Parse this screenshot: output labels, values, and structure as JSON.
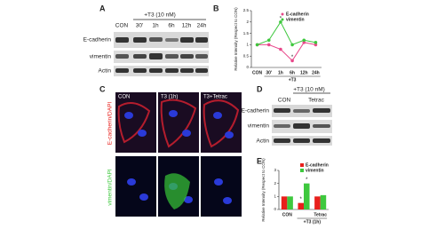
{
  "panels": {
    "a": {
      "letter": "A",
      "treatment": "+T3 (10 nM)",
      "lanes": [
        "CON",
        "30'",
        "1h",
        "6h",
        "12h",
        "24h"
      ],
      "rows": [
        "E-cadherin",
        "vimentin",
        "Actin"
      ]
    },
    "c": {
      "letter": "C",
      "columns": [
        "CON",
        "T3 (1h)",
        "T3+Tetrac"
      ],
      "rows": [
        "E-cadherin/DAPI",
        "vimentin/DAPI"
      ]
    },
    "d": {
      "letter": "D",
      "treatment": "+T3 (10 nM)",
      "lanes": [
        "CON",
        "Tetrac"
      ],
      "rows": [
        "E-cadherin",
        "vimentin",
        "Actin"
      ]
    }
  },
  "chart_data": [
    {
      "type": "line",
      "letter": "B",
      "y_label": "Relative Intensity (Respect to CON)",
      "group_label": "+T3",
      "categories": [
        "CON",
        "30'",
        "1h",
        "6h",
        "12h",
        "24h"
      ],
      "series": [
        {
          "name": "E-cadherin",
          "color": "#e8488a",
          "values": [
            1.0,
            1.0,
            0.8,
            0.3,
            1.1,
            1.0
          ]
        },
        {
          "name": "vimentin",
          "color": "#3ec83e",
          "values": [
            1.0,
            1.2,
            2.0,
            1.0,
            1.2,
            1.1
          ]
        }
      ],
      "annotations": [
        "*",
        "*"
      ],
      "ylim": [
        0,
        2.5
      ],
      "yticks": [
        0,
        0.5,
        1,
        1.5,
        2,
        2.5
      ]
    },
    {
      "type": "bar",
      "letter": "E",
      "y_label": "Relative Intensity (Respect to CON)",
      "group_label": "+T3 (1h)",
      "categories": [
        "CON",
        null,
        "Tetrac"
      ],
      "series": [
        {
          "name": "E-cadherin",
          "color": "#e8201c",
          "values": [
            1.0,
            0.5,
            1.0
          ]
        },
        {
          "name": "vimentin",
          "color": "#3ec83e",
          "values": [
            1.0,
            2.0,
            1.1
          ]
        }
      ],
      "annotations": [
        "*",
        "*"
      ],
      "ylim": [
        0,
        3
      ],
      "yticks": [
        0,
        1,
        2,
        3
      ]
    }
  ]
}
